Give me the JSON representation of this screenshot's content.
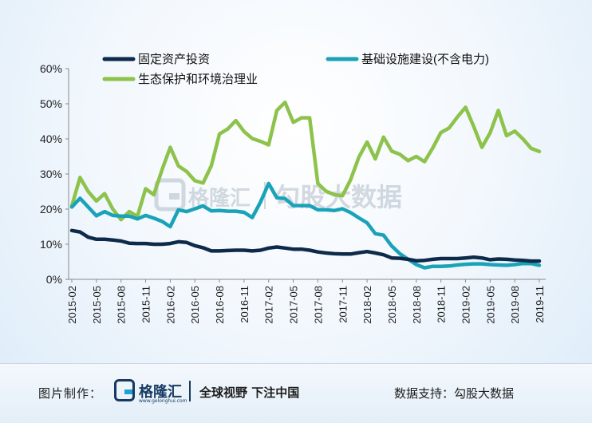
{
  "chart_data": {
    "type": "line",
    "y_unit": "%",
    "ylim": [
      0,
      60
    ],
    "y_ticks": [
      "0%",
      "10%",
      "20%",
      "30%",
      "40%",
      "50%",
      "60%"
    ],
    "y_tick_values": [
      0,
      10,
      20,
      30,
      40,
      50,
      60
    ],
    "x_labels": [
      "2015-02",
      "2015-05",
      "2015-08",
      "2015-11",
      "2016-02",
      "2016-05",
      "2016-08",
      "2016-11",
      "2017-02",
      "2017-05",
      "2017-08",
      "2017-11",
      "2018-02",
      "2018-05",
      "2018-08",
      "2018-11",
      "2019-02",
      "2019-05",
      "2019-08",
      "2019-11"
    ],
    "x": [
      "2015-02",
      "2015-03",
      "2015-04",
      "2015-05",
      "2015-06",
      "2015-07",
      "2015-08",
      "2015-09",
      "2015-10",
      "2015-11",
      "2015-12",
      "2016-01",
      "2016-02",
      "2016-03",
      "2016-04",
      "2016-05",
      "2016-06",
      "2016-07",
      "2016-08",
      "2016-09",
      "2016-10",
      "2016-11",
      "2016-12",
      "2017-01",
      "2017-02",
      "2017-03",
      "2017-04",
      "2017-05",
      "2017-06",
      "2017-07",
      "2017-08",
      "2017-09",
      "2017-10",
      "2017-11",
      "2017-12",
      "2018-01",
      "2018-02",
      "2018-03",
      "2018-04",
      "2018-05",
      "2018-06",
      "2018-07",
      "2018-08",
      "2018-09",
      "2018-10",
      "2018-11",
      "2018-12",
      "2019-01",
      "2019-02",
      "2019-03",
      "2019-04",
      "2019-05",
      "2019-06",
      "2019-07",
      "2019-08",
      "2019-09",
      "2019-10",
      "2019-11"
    ],
    "legend": [
      "固定资产投资",
      "基础设施建设(不含电力)",
      "生态保护和环境治理业"
    ],
    "legend_position": "top",
    "grid": false,
    "series": [
      {
        "name": "固定资产投资",
        "color": "#0d2a4a",
        "values": [
          13.9,
          13.5,
          12.0,
          11.4,
          11.4,
          11.2,
          10.9,
          10.3,
          10.2,
          10.2,
          10.0,
          10.0,
          10.2,
          10.7,
          10.5,
          9.6,
          9.0,
          8.1,
          8.1,
          8.2,
          8.3,
          8.3,
          8.1,
          8.3,
          8.9,
          9.2,
          8.9,
          8.6,
          8.6,
          8.3,
          7.8,
          7.5,
          7.3,
          7.2,
          7.2,
          7.6,
          7.9,
          7.5,
          7.0,
          6.1,
          6.0,
          5.7,
          5.3,
          5.4,
          5.7,
          5.9,
          5.9,
          5.9,
          6.1,
          6.3,
          6.1,
          5.6,
          5.8,
          5.7,
          5.5,
          5.4,
          5.2,
          5.2
        ]
      },
      {
        "name": "基础设施建设(不含电力)",
        "color": "#1aa3b8",
        "values": [
          20.6,
          23.1,
          20.6,
          18.1,
          19.3,
          18.2,
          18.0,
          18.0,
          17.2,
          18.2,
          17.4,
          16.5,
          15.0,
          19.8,
          19.3,
          20.1,
          20.9,
          19.5,
          19.6,
          19.4,
          19.4,
          19.1,
          17.6,
          22.0,
          27.3,
          23.2,
          23.0,
          21.0,
          21.0,
          21.0,
          19.8,
          19.8,
          19.6,
          20.1,
          19.0,
          17.5,
          16.1,
          13.0,
          12.6,
          9.5,
          7.3,
          5.7,
          4.2,
          3.3,
          3.7,
          3.7,
          3.8,
          4.1,
          4.3,
          4.4,
          4.4,
          4.2,
          4.1,
          4.0,
          4.2,
          4.5,
          4.5,
          4.0
        ]
      },
      {
        "name": "生态保护和环境治理业",
        "color": "#8dc24b",
        "values": [
          20.9,
          29.0,
          25.0,
          22.3,
          24.4,
          20.0,
          17.0,
          19.3,
          17.9,
          25.8,
          24.1,
          31.2,
          37.6,
          32.3,
          30.7,
          28.1,
          27.4,
          32.3,
          41.4,
          42.8,
          45.2,
          42.1,
          40.1,
          39.3,
          38.3,
          48.1,
          50.4,
          44.7,
          46.0,
          46.0,
          27.3,
          25.1,
          24.1,
          23.8,
          28.4,
          34.8,
          39.1,
          34.3,
          40.5,
          36.5,
          35.6,
          33.8,
          35.0,
          33.5,
          37.4,
          41.8,
          43.1,
          46.2,
          49.0,
          43.5,
          37.6,
          41.7,
          48.1,
          40.9,
          42.2,
          40.0,
          37.3,
          36.4
        ]
      }
    ]
  },
  "watermark": {
    "brand": "格隆汇",
    "text": "勾股大数据"
  },
  "footer": {
    "credit_label": "图片制作：",
    "logo_name": "格隆汇",
    "logo_url": "www.gelonghui.com",
    "slogan": "全球视野 下注中国",
    "source": "数据支持：勾股大数据"
  }
}
